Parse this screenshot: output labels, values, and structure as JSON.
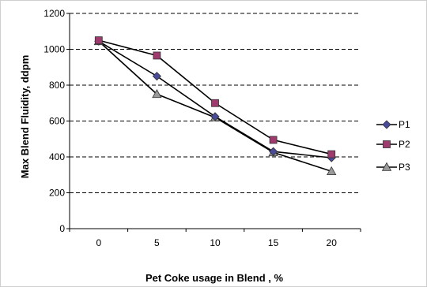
{
  "chart_data": {
    "type": "line",
    "title": "",
    "xlabel": "Pet Coke usage in Blend , %",
    "ylabel": "Max Blend Fluidity, ddpm",
    "categories": [
      "0",
      "5",
      "10",
      "15",
      "20"
    ],
    "ylim": [
      0,
      1200
    ],
    "yticks": [
      "0",
      "200",
      "400",
      "600",
      "800",
      "1000",
      "1200"
    ],
    "grid": "horizontal dashed",
    "legend_position": "right",
    "series": [
      {
        "name": "P1",
        "values": [
          1045,
          850,
          625,
          430,
          395
        ],
        "color": "#4a4a9a",
        "marker": "diamond"
      },
      {
        "name": "P2",
        "values": [
          1050,
          965,
          700,
          495,
          415
        ],
        "color": "#9e3a6e",
        "marker": "square"
      },
      {
        "name": "P3",
        "values": [
          1045,
          750,
          620,
          425,
          320
        ],
        "color": "#9a9a9a",
        "marker": "triangle"
      }
    ]
  }
}
